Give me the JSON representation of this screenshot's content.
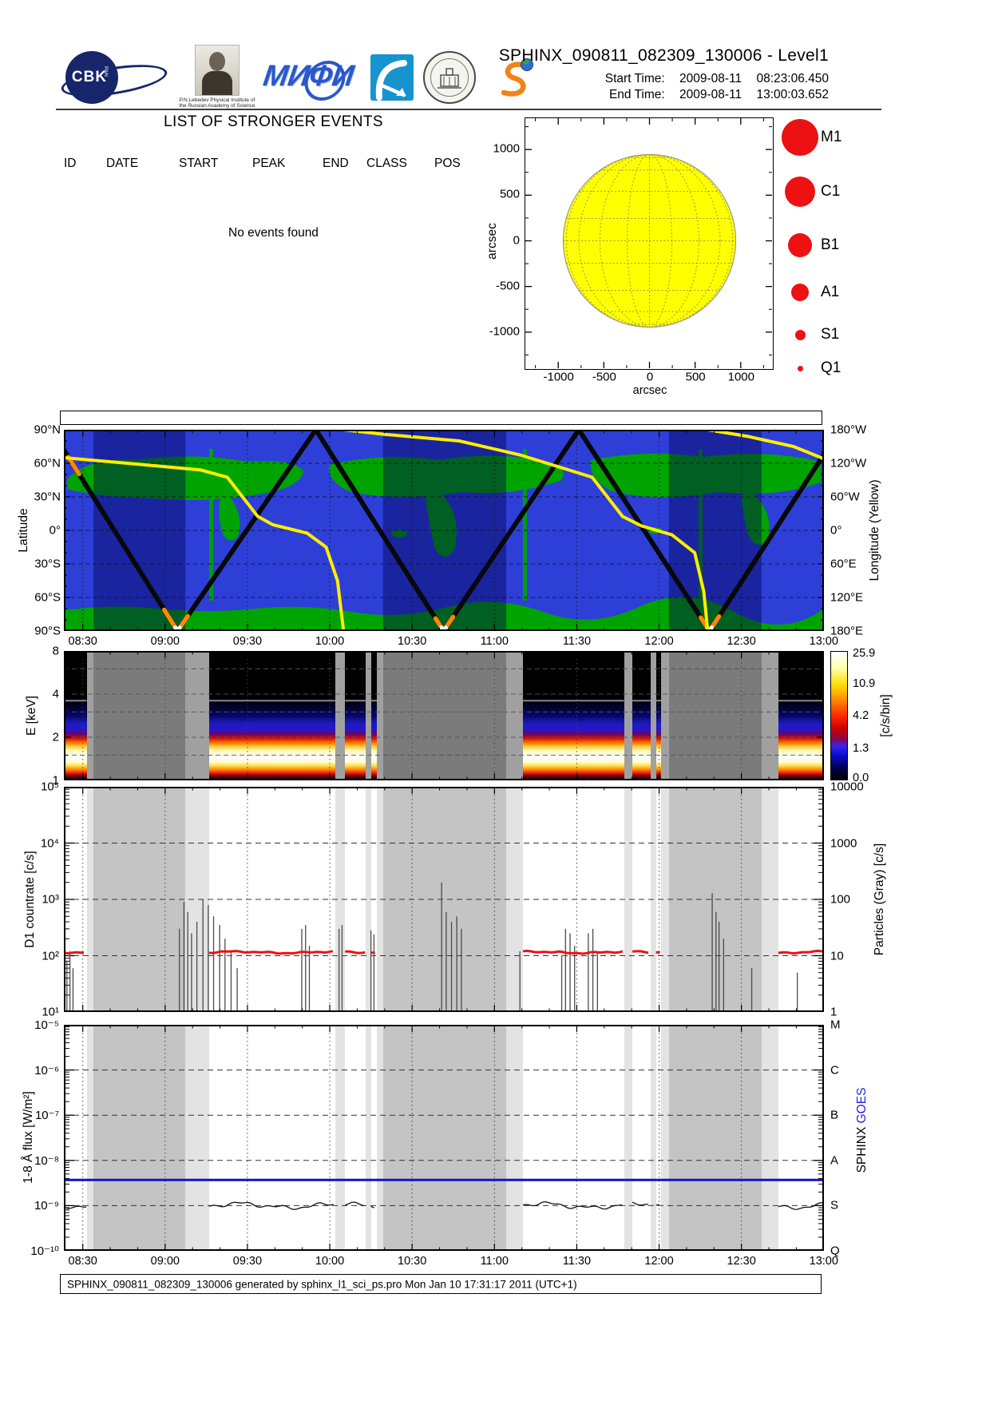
{
  "header": {
    "title": "SPHINX_090811_082309_130006 - Level1",
    "start_label": "Start Time:",
    "start_date": "2009-08-11",
    "start_time": "08:23:06.450",
    "end_label": "End Time:",
    "end_date": "2009-08-11",
    "end_time": "13:00:03.652",
    "logo_cbk_text": "CBK",
    "logo_cbk_sub": "PAN",
    "logo_lebedev_caption": "P.N.Lebedev Physical Institute of the Russian Academy of Science",
    "logo_mephi_text": "МИФИ"
  },
  "events": {
    "title": "LIST OF STRONGER EVENTS",
    "columns": [
      "ID",
      "DATE",
      "START",
      "PEAK",
      "END",
      "CLASS",
      "POS"
    ],
    "empty_message": "No events found",
    "rows": []
  },
  "sun_plot": {
    "x_ticks": [
      "-1000",
      "-500",
      "0",
      "500",
      "1000"
    ],
    "y_ticks": [
      "1000",
      "500",
      "0",
      "-500",
      "-1000"
    ],
    "xlabel": "arcsec",
    "ylabel": "arcsec",
    "disk_color": "#ffff00"
  },
  "flare_legend": {
    "color": "#ee1111",
    "items": [
      {
        "label": "M1",
        "diameter": 46
      },
      {
        "label": "C1",
        "diameter": 38
      },
      {
        "label": "B1",
        "diameter": 30
      },
      {
        "label": "A1",
        "diameter": 22
      },
      {
        "label": "S1",
        "diameter": 13
      },
      {
        "label": "Q1",
        "diameter": 7
      }
    ]
  },
  "map_panel": {
    "ylabel_left": "Latitude",
    "ylabel_right": "Longitude (Yellow)",
    "lat_ticks": [
      "90°N",
      "60°N",
      "30°N",
      "0°",
      "30°S",
      "60°S",
      "90°S"
    ],
    "lon_ticks": [
      "180°W",
      "120°W",
      "60°W",
      "0°",
      "60°E",
      "120°E",
      "180°E"
    ],
    "ocean_color": "#2e3fd8",
    "land_color": "#00a400",
    "track_color": "#08080a",
    "longitude_color": "#ffee00",
    "hot_segment_color": "#ff8800"
  },
  "spectrogram": {
    "ylabel": "E [keV]",
    "y_ticks": [
      "8",
      "4",
      "2",
      "1"
    ],
    "colorbar_ticks": [
      "25.9",
      "10.9",
      "4.2",
      "1.3",
      "0.0"
    ],
    "colorbar_label": "[c/s/bin]"
  },
  "countrate_panel": {
    "ylabel": "D1 countrate [c/s]",
    "y_ticks": [
      "10⁵",
      "10⁴",
      "10³",
      "10²",
      "10¹"
    ],
    "right_ticks": [
      "10000",
      "1000",
      "100",
      "10",
      "1"
    ],
    "ylabel_right": "Particles (Gray) [c/s]",
    "xray_color": "#ee1111",
    "particle_color": "#4a4a4a"
  },
  "flux_panel": {
    "ylabel": "1-8 Å flux [W/m²]",
    "y_ticks": [
      "10⁻⁵",
      "10⁻⁶",
      "10⁻⁷",
      "10⁻⁸",
      "10⁻⁹",
      "10⁻¹⁰"
    ],
    "right_ticks": [
      "M",
      "C",
      "B",
      "A",
      "S",
      "Q"
    ],
    "label_sphinx": "SPHINX",
    "label_goes": "GOES",
    "sphinx_color": "#000000",
    "goes_color": "#2222dd"
  },
  "time_axis": {
    "ticks": [
      "08:30",
      "09:00",
      "09:30",
      "10:00",
      "10:30",
      "11:00",
      "11:30",
      "12:00",
      "12:30",
      "13:00"
    ]
  },
  "footer": {
    "text": "SPHINX_090811_082309_130006 generated by sphinx_l1_sci_ps.pro Mon Jan 10 17:31:17 2011 (UTC+1)"
  },
  "chart_data": {
    "type": "multi-panel time series",
    "time_start": "08:23:06.450",
    "time_end": "13:00:03.652",
    "time_start_min": 503.108,
    "time_end_min": 780.061,
    "segments": [
      [
        0.0,
        0.03,
        "data"
      ],
      [
        0.03,
        0.039,
        "light"
      ],
      [
        0.039,
        0.16,
        "dark"
      ],
      [
        0.16,
        0.191,
        "light"
      ],
      [
        0.191,
        0.357,
        "data"
      ],
      [
        0.357,
        0.37,
        "light"
      ],
      [
        0.37,
        0.397,
        "data"
      ],
      [
        0.397,
        0.404,
        "light"
      ],
      [
        0.404,
        0.412,
        "data"
      ],
      [
        0.412,
        0.42,
        "light"
      ],
      [
        0.42,
        0.582,
        "dark"
      ],
      [
        0.582,
        0.604,
        "light"
      ],
      [
        0.604,
        0.737,
        "data"
      ],
      [
        0.737,
        0.748,
        "light"
      ],
      [
        0.748,
        0.772,
        "data"
      ],
      [
        0.772,
        0.779,
        "light"
      ],
      [
        0.779,
        0.786,
        "data"
      ],
      [
        0.786,
        0.796,
        "light"
      ],
      [
        0.796,
        0.918,
        "dark"
      ],
      [
        0.918,
        0.94,
        "light"
      ],
      [
        0.94,
        1.0,
        "data"
      ]
    ],
    "satellite_track_latitude": [
      [
        0,
        72
      ],
      [
        0.1495,
        -90
      ],
      [
        0.3315,
        90
      ],
      [
        0.4995,
        -90
      ],
      [
        0.6775,
        90
      ],
      [
        0.8495,
        -90
      ],
      [
        1,
        68
      ]
    ],
    "track_hot_segments": [
      [
        0.006,
        0.02
      ],
      [
        0.132,
        0.147
      ],
      [
        0.152,
        0.163
      ],
      [
        0.489,
        0.498
      ],
      [
        0.502,
        0.512
      ],
      [
        0.838,
        0.847
      ],
      [
        0.852,
        0.862
      ]
    ],
    "track_trough_markers": [
      [
        0.1465,
        0.1525
      ],
      [
        0.4965,
        0.5025
      ],
      [
        0.8465,
        0.8525
      ]
    ],
    "longitude_curve_arcs": [
      [
        [
          0.0,
          130
        ],
        [
          0.1,
          118
        ],
        [
          0.18,
          108
        ],
        [
          0.215,
          95
        ],
        [
          0.235,
          60
        ],
        [
          0.255,
          25
        ],
        [
          0.275,
          10
        ],
        [
          0.32,
          -5
        ],
        [
          0.345,
          -30
        ],
        [
          0.36,
          -90
        ],
        [
          0.368,
          -180
        ]
      ],
      [
        [
          0.368,
          180
        ],
        [
          0.42,
          172
        ],
        [
          0.52,
          160
        ],
        [
          0.6,
          135
        ],
        [
          0.655,
          112
        ],
        [
          0.695,
          95
        ],
        [
          0.715,
          60
        ],
        [
          0.735,
          25
        ],
        [
          0.76,
          8
        ],
        [
          0.8,
          -8
        ],
        [
          0.83,
          -40
        ],
        [
          0.842,
          -110
        ],
        [
          0.847,
          -180
        ]
      ],
      [
        [
          0.847,
          180
        ],
        [
          0.9,
          168
        ],
        [
          0.96,
          150
        ],
        [
          1.0,
          128
        ]
      ]
    ],
    "spectrogram": {
      "energy_range_keV": [
        1,
        8
      ],
      "count_range_cs_bin": [
        0.0,
        25.9
      ],
      "colorbar_tick_values": [
        25.9,
        10.9,
        4.2,
        1.3,
        0.0
      ],
      "bright_band_keV": [
        1.05,
        1.9
      ],
      "artifact_line_keV": 3.6
    },
    "d1_countrate": {
      "xray_level_cps": 115,
      "axis_range_cps": [
        10,
        100000
      ],
      "particles_axis_range_cps": [
        1,
        10000
      ],
      "particle_spikes": [
        [
          0.004,
          8
        ],
        [
          0.008,
          12
        ],
        [
          0.012,
          6
        ],
        [
          0.152,
          30
        ],
        [
          0.158,
          90
        ],
        [
          0.163,
          60
        ],
        [
          0.168,
          25
        ],
        [
          0.175,
          40
        ],
        [
          0.183,
          100
        ],
        [
          0.19,
          80
        ],
        [
          0.197,
          50
        ],
        [
          0.205,
          35
        ],
        [
          0.212,
          20
        ],
        [
          0.22,
          12
        ],
        [
          0.228,
          6
        ],
        [
          0.313,
          30
        ],
        [
          0.318,
          35
        ],
        [
          0.323,
          15
        ],
        [
          0.362,
          30
        ],
        [
          0.366,
          35
        ],
        [
          0.404,
          28
        ],
        [
          0.408,
          24
        ],
        [
          0.497,
          200
        ],
        [
          0.503,
          60
        ],
        [
          0.51,
          40
        ],
        [
          0.517,
          50
        ],
        [
          0.523,
          30
        ],
        [
          0.6,
          12
        ],
        [
          0.655,
          10
        ],
        [
          0.66,
          30
        ],
        [
          0.666,
          25
        ],
        [
          0.672,
          15
        ],
        [
          0.69,
          25
        ],
        [
          0.696,
          30
        ],
        [
          0.702,
          12
        ],
        [
          0.853,
          130
        ],
        [
          0.858,
          60
        ],
        [
          0.862,
          40
        ],
        [
          0.868,
          20
        ],
        [
          0.905,
          6
        ],
        [
          0.965,
          5
        ]
      ]
    },
    "flux": {
      "axis_range_wm2": [
        1e-10,
        1e-05
      ],
      "sphinx_level_wm2": 1e-09,
      "goes_level_wm2": 3.7e-09,
      "goes_classes": [
        "M",
        "C",
        "B",
        "A",
        "S",
        "Q"
      ]
    }
  }
}
